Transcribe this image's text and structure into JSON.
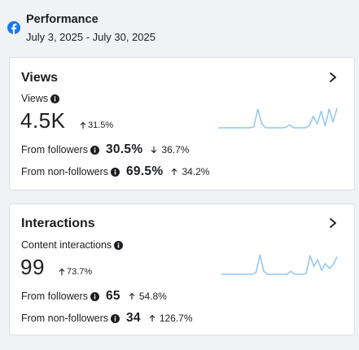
{
  "header": {
    "title": "Performance",
    "date_range": "July 3, 2025 - July 30, 2025",
    "brand_icon": "facebook-icon",
    "brand_color": "#1877f2"
  },
  "views": {
    "title": "Views",
    "subtitle": "Views",
    "total": "4.5K",
    "total_change": "31.5%",
    "total_direction": "up",
    "followers": {
      "label": "From followers",
      "value": "30.5%",
      "change": "36.7%",
      "direction": "down"
    },
    "non_followers": {
      "label": "From non-followers",
      "value": "69.5%",
      "change": "34.2%",
      "direction": "up"
    },
    "sparkline": [
      0,
      0,
      0,
      0,
      0,
      0,
      0,
      0,
      0,
      0.05,
      0.95,
      0.2,
      0,
      0,
      0,
      0,
      0,
      0.02,
      0.15,
      0,
      0,
      0,
      0,
      0.1,
      0.6,
      0.2,
      0.85,
      0.1,
      0.95,
      0.3,
      1.0
    ]
  },
  "interactions": {
    "title": "Interactions",
    "subtitle": "Content interactions",
    "total": "99",
    "total_change": "73.7%",
    "total_direction": "up",
    "followers": {
      "label": "From followers",
      "value": "65",
      "change": "54.8%",
      "direction": "up"
    },
    "non_followers": {
      "label": "From non-followers",
      "value": "34",
      "change": "126.7%",
      "direction": "up"
    },
    "sparkline": [
      0,
      0,
      0,
      0,
      0,
      0,
      0,
      0,
      0,
      0.1,
      1.0,
      0.15,
      0,
      0,
      0,
      0,
      0,
      0,
      0.15,
      0,
      0,
      0,
      0.05,
      0.95,
      0.4,
      0.75,
      0.2,
      0.55,
      0.3,
      0.5,
      0.9
    ]
  },
  "colors": {
    "sparkline": "#8fc7ee",
    "arrow": "#1c1e21"
  }
}
